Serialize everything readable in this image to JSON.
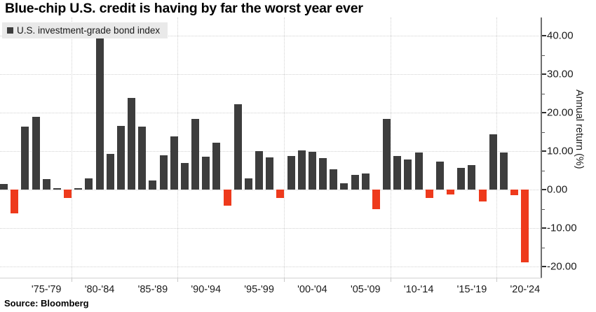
{
  "title": "Blue-chip U.S. credit is having by far the worst year ever",
  "legend": {
    "label": "U.S. investment-grade bond index",
    "swatch_color": "#3d3d3d"
  },
  "source": "Source: Bloomberg",
  "y_axis": {
    "title": "Annual return (%)",
    "tick_labels": [
      "40.00",
      "30.00",
      "20.00",
      "10.00",
      "0.00",
      "-10.00",
      "-20.00"
    ],
    "tick_values": [
      40,
      30,
      20,
      10,
      0,
      -10,
      -20
    ],
    "minor_tick_values": [
      35,
      25,
      15,
      5,
      -5,
      -15
    ],
    "side": "right"
  },
  "x_axis": {
    "tick_labels": [
      "'75-'79",
      "'80-'84",
      "'85-'89",
      "'90-'94",
      "'95-'99",
      "'00-'04",
      "'05-'09",
      "'10-'14",
      "'15-'19",
      "'20-'24"
    ],
    "label_anchor_indices": [
      4,
      9,
      14,
      19,
      24,
      29,
      34,
      39,
      44,
      49
    ],
    "decade_boundary_indices": [
      7,
      17,
      27,
      37,
      47
    ]
  },
  "colors": {
    "positive_bar": "#3d3d3d",
    "negative_bar": "#ee3a1c",
    "grid": "#d2d2d2",
    "axis": "#6e6e6e",
    "text": "#1a1a1a",
    "legend_background": "#e9e9e9"
  },
  "chart_data": {
    "type": "bar",
    "title": "Blue-chip U.S. credit is having by far the worst year ever",
    "xlabel": "",
    "ylabel": "Annual return (%)",
    "legend_entries": [
      "U.S. investment-grade bond index"
    ],
    "legend_position": "top-left",
    "grid": "dotted, horizontal every 10 from -20 to 40, vertical at decade boundaries",
    "ylim": [
      -22,
      43
    ],
    "x": [
      1973,
      1974,
      1975,
      1976,
      1977,
      1978,
      1979,
      1980,
      1981,
      1982,
      1983,
      1984,
      1985,
      1986,
      1987,
      1988,
      1989,
      1990,
      1991,
      1992,
      1993,
      1994,
      1995,
      1996,
      1997,
      1998,
      1999,
      2000,
      2001,
      2002,
      2003,
      2004,
      2005,
      2006,
      2007,
      2008,
      2009,
      2010,
      2011,
      2012,
      2013,
      2014,
      2015,
      2016,
      2017,
      2018,
      2019,
      2020,
      2021,
      2022
    ],
    "values": [
      1.4,
      -6.2,
      16.4,
      19.0,
      2.8,
      0.3,
      -2.2,
      0.3,
      2.9,
      39.2,
      9.2,
      16.5,
      23.9,
      16.4,
      2.4,
      9.0,
      13.9,
      7.0,
      18.3,
      8.6,
      12.1,
      -4.2,
      22.2,
      3.0,
      10.0,
      8.3,
      -2.1,
      8.8,
      10.2,
      9.8,
      8.1,
      5.2,
      1.6,
      3.9,
      4.2,
      -5.1,
      18.4,
      8.8,
      7.9,
      9.7,
      -2.1,
      7.2,
      -1.2,
      5.7,
      6.3,
      -3.0,
      14.3,
      9.7,
      -1.5,
      -18.9
    ],
    "series": [
      {
        "name": "U.S. investment-grade bond index",
        "values": [
          1.4,
          -6.2,
          16.4,
          19.0,
          2.8,
          0.3,
          -2.2,
          0.3,
          2.9,
          39.2,
          9.2,
          16.5,
          23.9,
          16.4,
          2.4,
          9.0,
          13.9,
          7.0,
          18.3,
          8.6,
          12.1,
          -4.2,
          22.2,
          3.0,
          10.0,
          8.3,
          -2.1,
          8.8,
          10.2,
          9.8,
          8.1,
          5.2,
          1.6,
          3.9,
          4.2,
          -5.1,
          18.4,
          8.8,
          7.9,
          9.7,
          -2.1,
          7.2,
          -1.2,
          5.7,
          6.3,
          -3.0,
          14.3,
          9.7,
          -1.5,
          -18.9
        ]
      }
    ],
    "annotation": "Positive years dark gray, negative years red; 2022 is the worst year ever at about -19%"
  }
}
